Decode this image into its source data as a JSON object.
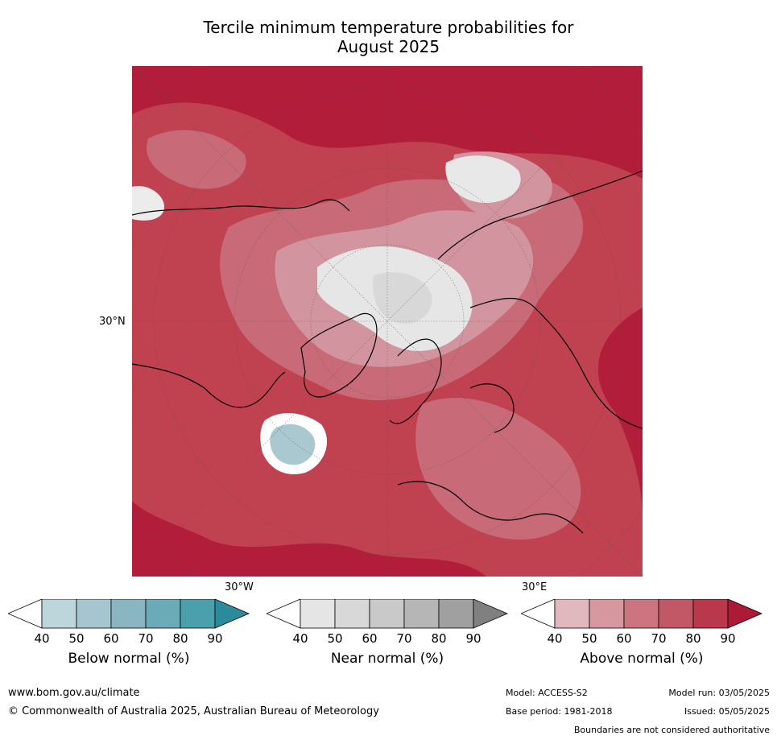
{
  "title": {
    "line1": "Tercile minimum temperature probabilities for",
    "line2": "August 2025"
  },
  "map": {
    "projection": "north-polar",
    "labels": {
      "lat30n": "30°N",
      "lon30w": "30°W",
      "lon30e": "30°E"
    },
    "palette": {
      "above_90": "#b21d3a",
      "above_80": "#bf3f55",
      "above_70": "#c86a78",
      "above_60": "#d2959f",
      "near": "#e4e4e4",
      "below": "#a9c8d0"
    }
  },
  "colorbars": [
    {
      "title": "Below normal (%)",
      "ticks": [
        "40",
        "50",
        "60",
        "70",
        "80",
        "90"
      ],
      "colors": [
        "#ffffff",
        "#bdd6dc",
        "#a5c6ce",
        "#89b6c0",
        "#6babb7",
        "#4ba0ae",
        "#2b8a9c"
      ]
    },
    {
      "title": "Near normal (%)",
      "ticks": [
        "40",
        "50",
        "60",
        "70",
        "80",
        "90"
      ],
      "colors": [
        "#ffffff",
        "#e5e5e5",
        "#d8d8d8",
        "#c9c9c9",
        "#b6b6b6",
        "#a0a0a0",
        "#808080"
      ]
    },
    {
      "title": "Above normal (%)",
      "ticks": [
        "40",
        "50",
        "60",
        "70",
        "80",
        "90"
      ],
      "colors": [
        "#ffffff",
        "#e0b8bd",
        "#d6979e",
        "#cc7580",
        "#c25866",
        "#b9384c",
        "#ad1a36"
      ]
    }
  ],
  "footer": {
    "website": "www.bom.gov.au/climate",
    "copyright": "© Commonwealth of Australia 2025, Australian Bureau of Meteorology",
    "model": "Model: ACCESS-S2",
    "base_period": "Base period: 1981-2018",
    "model_run": "Model run: 03/05/2025",
    "issued": "Issued: 05/05/2025",
    "disclaimer": "Boundaries are not considered authoritative"
  }
}
